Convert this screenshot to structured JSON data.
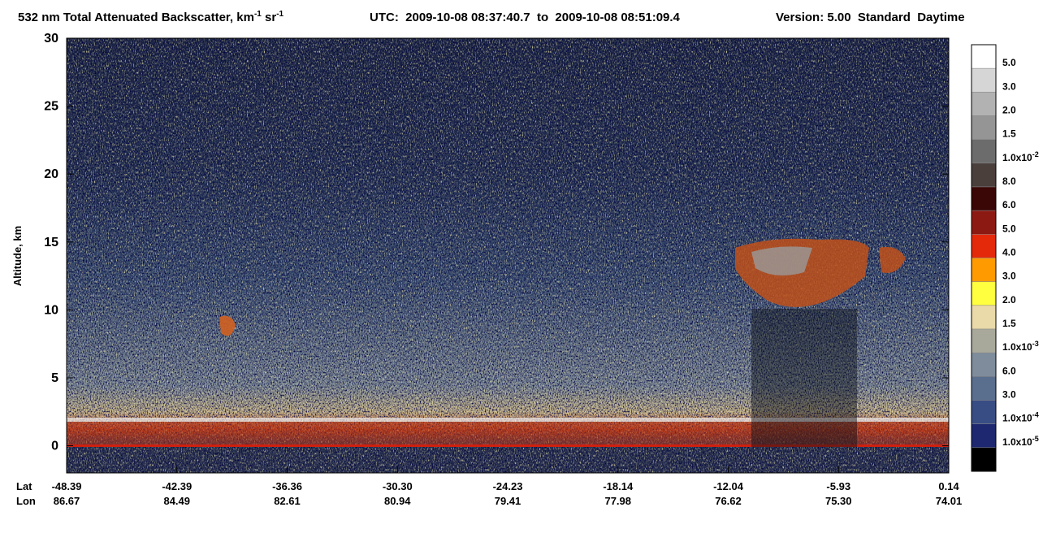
{
  "chart_data": {
    "type": "curtain",
    "title": {
      "main": "532 nm Total Attenuated Backscatter, km",
      "unit_exp": "-1",
      "unit2": " sr",
      "unit2_exp": "-1",
      "time_range": "UTC:  2009-10-08 08:37:40.7  to  2009-10-08 08:51:09.4",
      "version": "Version: 5.00  Standard  Daytime"
    },
    "y_label": "Altitude, km",
    "ylim": [
      -2,
      30
    ],
    "yticks": [
      0,
      5,
      10,
      15,
      20,
      25,
      30
    ],
    "x_row_labels": [
      "Lat",
      "Lon"
    ],
    "lat": [
      "-48.39",
      "-42.39",
      "-36.36",
      "-30.30",
      "-24.23",
      "-18.14",
      "-12.04",
      "-5.93",
      "0.14"
    ],
    "lon": [
      "86.67",
      "84.49",
      "82.61",
      "80.94",
      "79.41",
      "77.98",
      "76.62",
      "75.30",
      "74.01"
    ],
    "colorbar": {
      "colors": [
        "#ffffff",
        "#d6d6d6",
        "#b2b2b2",
        "#959595",
        "#6c6c6c",
        "#4a3f3b",
        "#3a0606",
        "#8c1a12",
        "#e4290b",
        "#ff9b00",
        "#ffff3f",
        "#ead9a9",
        "#a9a99b",
        "#7e8c9c",
        "#5a6e8e",
        "#394d85",
        "#1d2870",
        "#000000"
      ],
      "labels": [
        "5.0",
        "3.0",
        "2.0",
        "1.5",
        {
          "text": "1.0x10",
          "sup": "-2"
        },
        "8.0",
        "6.0",
        "5.0",
        "4.0",
        "3.0",
        "2.0",
        "1.5",
        {
          "text": "1.0x10",
          "sup": "-3"
        },
        "6.0",
        "3.0",
        {
          "text": "1.0x10",
          "sup": "-4"
        },
        {
          "text": "1.0x10",
          "sup": "-5"
        }
      ]
    }
  }
}
